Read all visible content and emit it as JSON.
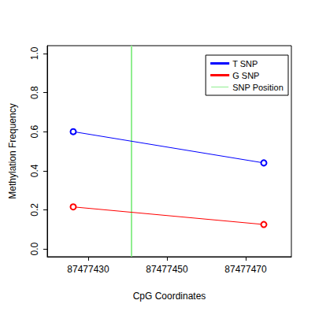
{
  "chart_data": {
    "type": "line",
    "x_label": "CpG Coordinates",
    "y_label": "Methylation Frequency",
    "x": [
      87477426.2,
      87477474.6
    ],
    "series": [
      {
        "name": "T SNP",
        "color": "#0000ff",
        "values": [
          0.6,
          0.44
        ],
        "marker": "open_circle"
      },
      {
        "name": "G SNP",
        "color": "#ff0000",
        "values": [
          0.215,
          0.125
        ],
        "marker": "open_circle"
      },
      {
        "name": "SNP Position",
        "color": "#90ee90",
        "type": "vline",
        "x": 87477441
      }
    ],
    "xlim": [
      87477419.6,
      87477481.6
    ],
    "xticks": [
      87477430,
      87477450,
      87477470
    ],
    "ylim": [
      -0.04,
      1.04
    ],
    "yticks": [
      {
        "value": 0,
        "label": "0.0"
      },
      0.2,
      0.4,
      0.6,
      0.8,
      {
        "value": 1,
        "label": "1.0"
      }
    ],
    "legend": "top-right",
    "grid": false
  }
}
